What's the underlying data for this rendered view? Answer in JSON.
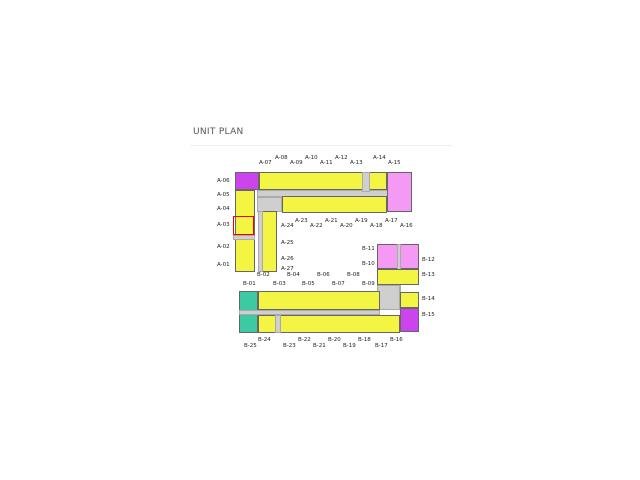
{
  "title": "UNIT PLAN",
  "selected_unit": "A-03",
  "colors": {
    "standard": "#f4f442",
    "corner_a": "#cc44ee",
    "large": "#f49af4",
    "corner_b": "#3ec9a5",
    "selection": "#ee0000",
    "corridor": "#cfcfcf"
  },
  "labels": [
    "A-01",
    "A-02",
    "A-03",
    "A-04",
    "A-05",
    "A-06",
    "A-07",
    "A-08",
    "A-09",
    "A-10",
    "A-11",
    "A-12",
    "A-13",
    "A-14",
    "A-15",
    "A-16",
    "A-17",
    "A-18",
    "A-19",
    "A-20",
    "A-21",
    "A-22",
    "A-23",
    "A-24",
    "A-25",
    "A-26",
    "A-27",
    "B-01",
    "B-02",
    "B-03",
    "B-04",
    "B-05",
    "B-06",
    "B-07",
    "B-08",
    "B-09",
    "B-10",
    "B-11",
    "B-12",
    "B-13",
    "B-14",
    "B-15",
    "B-16",
    "B-17",
    "B-18",
    "B-19",
    "B-20",
    "B-21",
    "B-22",
    "B-23",
    "B-24",
    "B-25"
  ]
}
